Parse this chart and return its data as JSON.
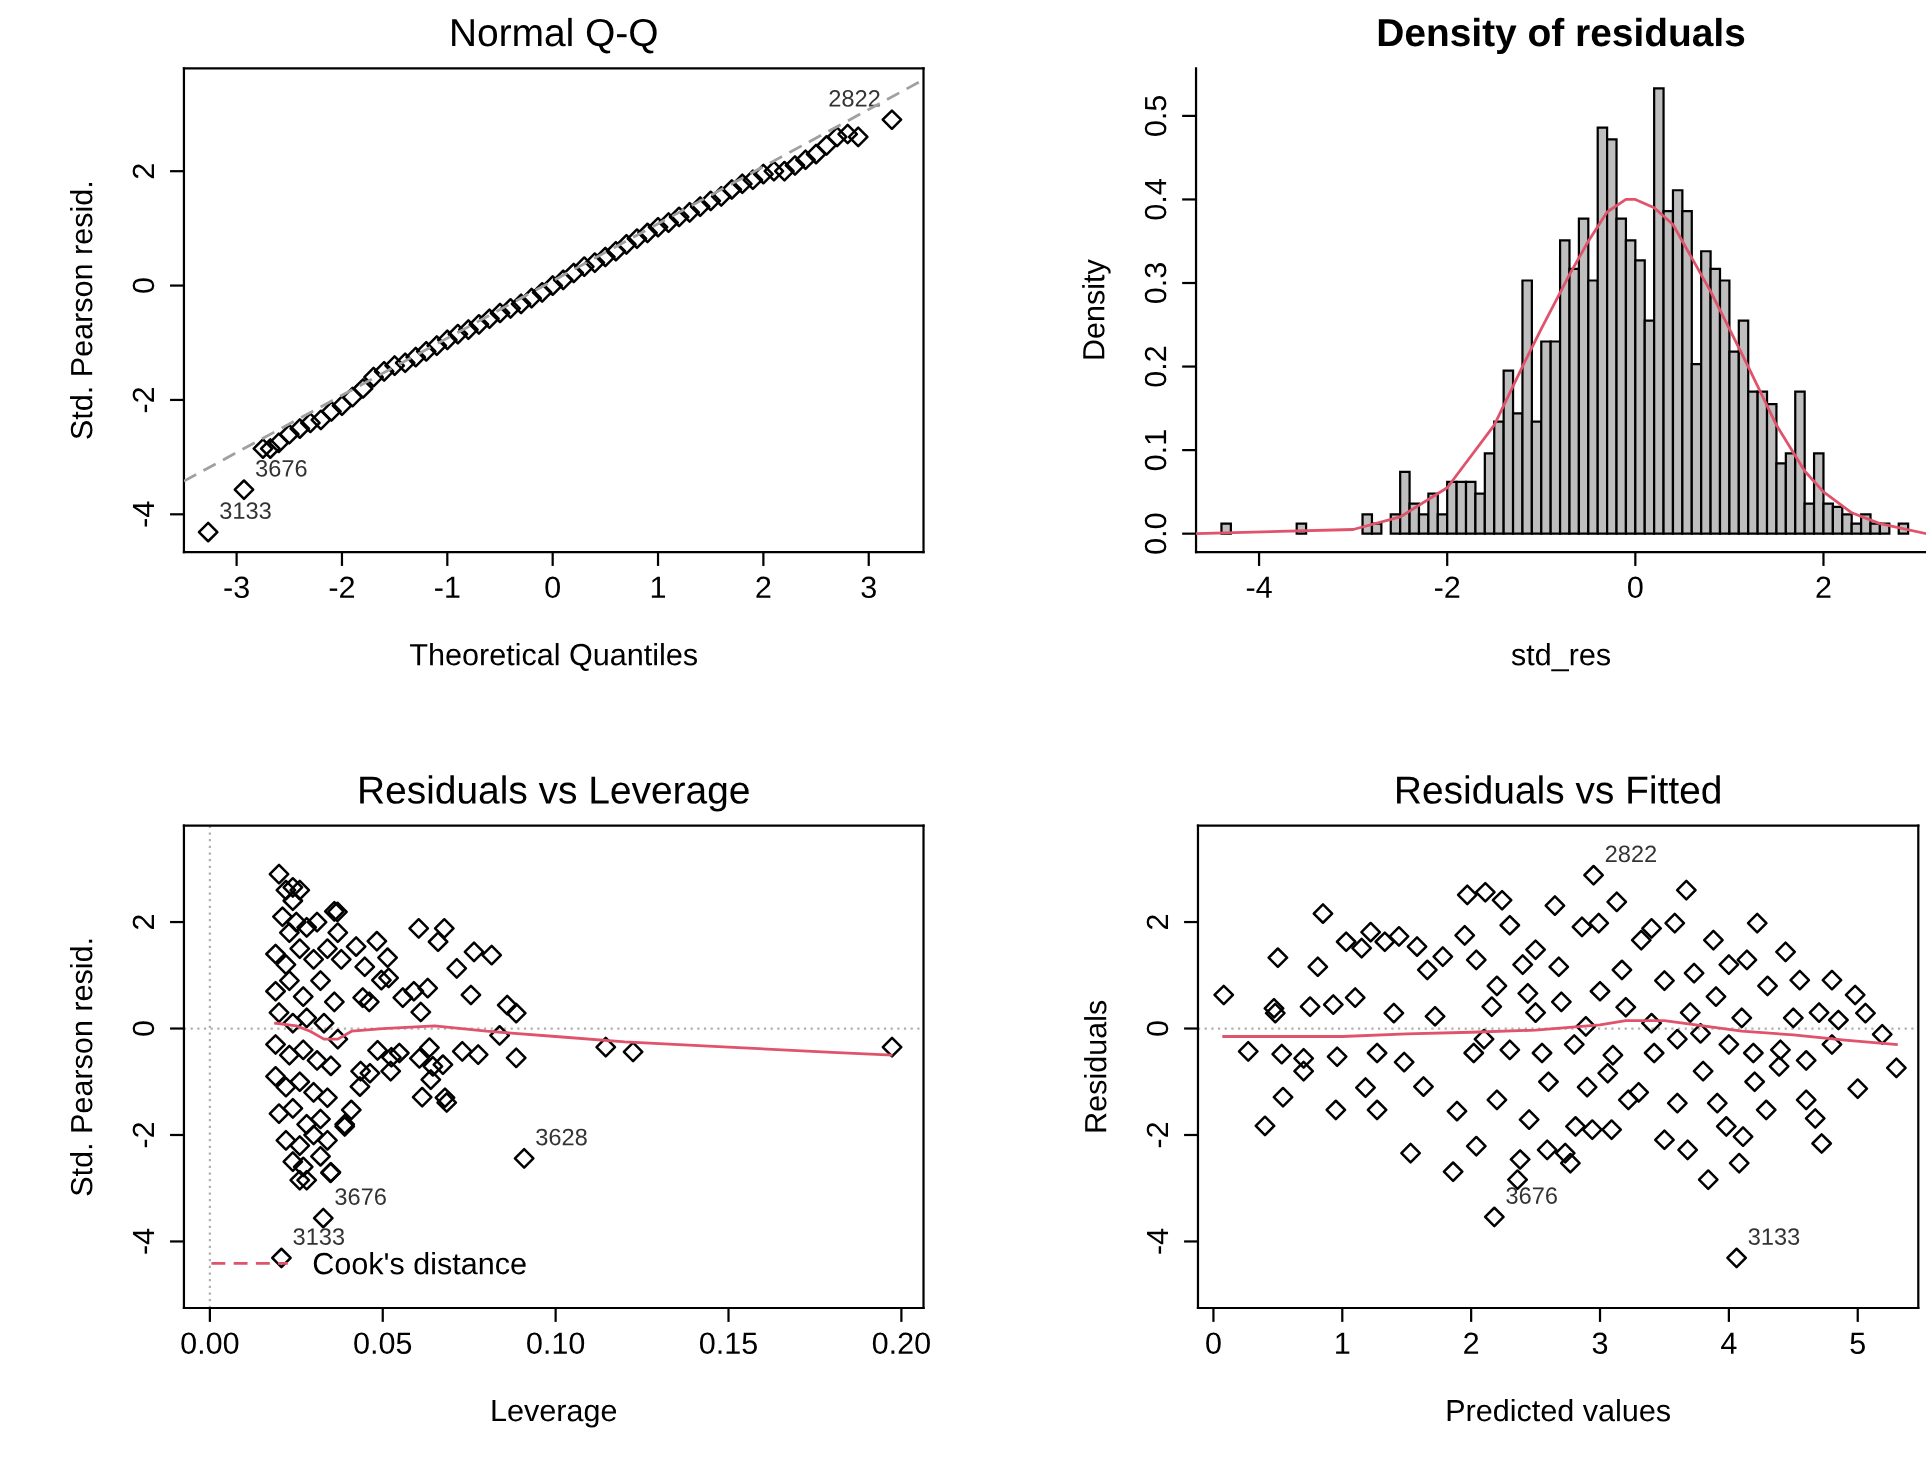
{
  "chart_data": [
    {
      "type": "scatter",
      "title": "Normal Q-Q",
      "xlabel": "Theoretical Quantiles",
      "ylabel": "Std. Pearson resid.",
      "xlim": [
        -3.5,
        3.52
      ],
      "ylim": [
        -4.66,
        3.8
      ],
      "xticks": [
        -3,
        -2,
        -1,
        0,
        1,
        2,
        3
      ],
      "yticks": [
        -4,
        -2,
        0,
        2
      ],
      "grid": false,
      "series": [
        {
          "type": "scatter",
          "marker": "diamond",
          "color": "#000000",
          "x": [
            -3.27,
            -2.93,
            -2.75,
            -2.68,
            -2.6,
            -2.5,
            -2.4,
            -2.3,
            -2.2,
            -2.1,
            -2.0,
            -1.9,
            -1.8,
            -1.7,
            -1.6,
            -1.5,
            -1.4,
            -1.3,
            -1.2,
            -1.1,
            -1.0,
            -0.9,
            -0.8,
            -0.7,
            -0.6,
            -0.5,
            -0.4,
            -0.3,
            -0.2,
            -0.1,
            0.0,
            0.1,
            0.2,
            0.3,
            0.4,
            0.5,
            0.6,
            0.7,
            0.8,
            0.9,
            1.0,
            1.1,
            1.2,
            1.3,
            1.4,
            1.5,
            1.6,
            1.7,
            1.8,
            1.9,
            2.0,
            2.1,
            2.2,
            2.3,
            2.4,
            2.5,
            2.6,
            2.7,
            2.8,
            2.9,
            3.22
          ],
          "values": [
            -4.31,
            -3.57,
            -2.85,
            -2.85,
            -2.75,
            -2.6,
            -2.5,
            -2.4,
            -2.35,
            -2.2,
            -2.1,
            -1.95,
            -1.8,
            -1.6,
            -1.5,
            -1.4,
            -1.35,
            -1.25,
            -1.15,
            -1.05,
            -0.95,
            -0.85,
            -0.77,
            -0.68,
            -0.58,
            -0.48,
            -0.4,
            -0.32,
            -0.22,
            -0.12,
            0.0,
            0.1,
            0.22,
            0.33,
            0.4,
            0.5,
            0.6,
            0.72,
            0.82,
            0.92,
            1.02,
            1.1,
            1.2,
            1.28,
            1.38,
            1.48,
            1.56,
            1.68,
            1.78,
            1.85,
            1.95,
            2.0,
            2.0,
            2.1,
            2.2,
            2.3,
            2.45,
            2.6,
            2.65,
            2.6,
            2.9
          ]
        },
        {
          "type": "line",
          "color": "#a0a0a0",
          "line_style": "dashed",
          "x": [
            -3.5,
            3.52
          ],
          "values": [
            -3.42,
            3.6
          ]
        }
      ],
      "annotations": [
        {
          "text": "2822",
          "x": 3.22,
          "y": 2.9
        },
        {
          "text": "3676",
          "x": -2.93,
          "y": -3.57
        },
        {
          "text": "3133",
          "x": -3.27,
          "y": -4.31
        }
      ]
    },
    {
      "type": "histogram",
      "title": "Density of residuals",
      "xlabel": "std_res",
      "ylabel": "Density",
      "xlim": [
        -4.67,
        3.09
      ],
      "ylim": [
        -0.022,
        0.557
      ],
      "xticks": [
        -4,
        -2,
        0,
        2
      ],
      "yticks": [
        {
          "value": 0,
          "label": "0.0"
        },
        0.1,
        0.2,
        0.3,
        0.4,
        0.5
      ],
      "color": "#bebebe",
      "grid": false,
      "bins": [
        -4.4,
        -4.3,
        -4.2,
        -4.1,
        -4.0,
        -3.9,
        -3.8,
        -3.7,
        -3.6,
        -3.5,
        -3.4,
        -3.3,
        -3.2,
        -3.1,
        -3.0,
        -2.9,
        -2.8,
        -2.7,
        -2.6,
        -2.5,
        -2.4,
        -2.3,
        -2.2,
        -2.1,
        -2.0,
        -1.9,
        -1.8,
        -1.7,
        -1.6,
        -1.5,
        -1.4,
        -1.3,
        -1.2,
        -1.1,
        -1.0,
        -0.9,
        -0.8,
        -0.7,
        -0.6,
        -0.5,
        -0.4,
        -0.3,
        -0.2,
        -0.1,
        0.0,
        0.1,
        0.2,
        0.3,
        0.4,
        0.5,
        0.6,
        0.7,
        0.8,
        0.9,
        1.0,
        1.1,
        1.2,
        1.3,
        1.4,
        1.5,
        1.6,
        1.7,
        1.8,
        1.9,
        2.0,
        2.1,
        2.2,
        2.3,
        2.4,
        2.5,
        2.6,
        2.7,
        2.8,
        2.9
      ],
      "values": [
        0.012,
        0,
        0,
        0,
        0,
        0,
        0,
        0,
        0.012,
        0,
        0,
        0,
        0,
        0,
        0,
        0.023,
        0.012,
        0,
        0.023,
        0.074,
        0.036,
        0.023,
        0.048,
        0.023,
        0.062,
        0.062,
        0.062,
        0.048,
        0.096,
        0.134,
        0.195,
        0.144,
        0.303,
        0.134,
        0.23,
        0.23,
        0.351,
        0.317,
        0.377,
        0.303,
        0.486,
        0.472,
        0.377,
        0.351,
        0.327,
        0.255,
        0.533,
        0.386,
        0.411,
        0.386,
        0.203,
        0.338,
        0.317,
        0.303,
        0.218,
        0.255,
        0.17,
        0.17,
        0.155,
        0.084,
        0.096,
        0.17,
        0.036,
        0.096,
        0.036,
        0.032,
        0.023,
        0.012,
        0.023,
        0.012,
        0.012,
        0,
        0.012
      ],
      "series": [
        {
          "type": "line",
          "color": "#df536b",
          "x": [
            -4.67,
            -3.0,
            -2.5,
            -2.0,
            -1.5,
            -1.2,
            -1.0,
            -0.7,
            -0.5,
            -0.3,
            -0.1,
            0.0,
            0.2,
            0.4,
            0.6,
            0.8,
            1.0,
            1.2,
            1.5,
            1.8,
            2.0,
            2.3,
            2.6,
            3.09
          ],
          "values": [
            0.0,
            0.005,
            0.02,
            0.055,
            0.13,
            0.2,
            0.245,
            0.31,
            0.35,
            0.385,
            0.4,
            0.4,
            0.39,
            0.37,
            0.33,
            0.29,
            0.245,
            0.2,
            0.13,
            0.075,
            0.05,
            0.025,
            0.012,
            0.0
          ]
        }
      ]
    },
    {
      "type": "scatter",
      "title": "Residuals vs Leverage",
      "xlabel": "Leverage",
      "ylabel": "Std. Pearson resid.",
      "xlim": [
        -0.0075,
        0.2064
      ],
      "ylim": [
        -5.25,
        3.81
      ],
      "xticks": [
        {
          "value": 0,
          "label": "0.00"
        },
        0.05,
        {
          "value": 0.1,
          "label": "0.10"
        },
        0.15,
        {
          "value": 0.2,
          "label": "0.20"
        }
      ],
      "yticks": [
        -4,
        -2,
        0,
        2
      ],
      "grid": false,
      "legend": "bottom left",
      "series": [
        {
          "type": "scatter",
          "marker": "diamond",
          "color": "#000000",
          "x": [
            0.02,
            0.022,
            0.024,
            0.026,
            0.024,
            0.021,
            0.023,
            0.025,
            0.028,
            0.031,
            0.036,
            0.037,
            0.019,
            0.022,
            0.026,
            0.03,
            0.034,
            0.038,
            0.019,
            0.023,
            0.027,
            0.032,
            0.036,
            0.02,
            0.024,
            0.028,
            0.033,
            0.037,
            0.019,
            0.023,
            0.027,
            0.031,
            0.035,
            0.019,
            0.022,
            0.026,
            0.03,
            0.034,
            0.02,
            0.024,
            0.028,
            0.032,
            0.039,
            0.022,
            0.026,
            0.03,
            0.034,
            0.024,
            0.027,
            0.032,
            0.035,
            0.026,
            0.028,
            0.0369,
            0.0423,
            0.0483,
            0.0514,
            0.0448,
            0.0604,
            0.066,
            0.0678,
            0.0714,
            0.0764,
            0.0815,
            0.0755,
            0.086,
            0.0886,
            0.0496,
            0.0517,
            0.0442,
            0.0461,
            0.0558,
            0.059,
            0.063,
            0.061,
            0.0838,
            0.1145,
            0.1224,
            0.1973,
            0.0886,
            0.073,
            0.0776,
            0.0525,
            0.0548,
            0.0485,
            0.0606,
            0.0635,
            0.0645,
            0.0674,
            0.0523,
            0.0436,
            0.0463,
            0.0434,
            0.0639,
            0.0614,
            0.068,
            0.0685,
            0.0409,
            0.039,
            0.0349,
            0.0909,
            0.0328,
            0.0207
          ],
          "values": [
            2.9,
            2.6,
            2.65,
            2.6,
            2.4,
            2.1,
            1.8,
            2.0,
            1.9,
            2.0,
            2.2,
            1.8,
            1.4,
            1.2,
            1.5,
            1.3,
            1.5,
            1.3,
            0.7,
            0.9,
            0.6,
            0.9,
            0.5,
            0.3,
            0.1,
            0.2,
            0.1,
            -0.2,
            -0.3,
            -0.5,
            -0.4,
            -0.6,
            -0.7,
            -0.9,
            -1.1,
            -1.0,
            -1.2,
            -1.3,
            -1.6,
            -1.5,
            -1.8,
            -1.7,
            -1.8,
            -2.1,
            -2.2,
            -2.0,
            -2.1,
            -2.5,
            -2.6,
            -2.4,
            -2.7,
            -2.85,
            -2.85,
            2.19,
            1.54,
            1.64,
            1.33,
            1.16,
            1.88,
            1.63,
            1.88,
            1.13,
            1.44,
            1.38,
            0.63,
            0.44,
            0.29,
            0.91,
            0.95,
            0.58,
            0.5,
            0.58,
            0.7,
            0.76,
            0.31,
            -0.13,
            -0.35,
            -0.44,
            -0.35,
            -0.55,
            -0.43,
            -0.49,
            -0.54,
            -0.46,
            -0.41,
            -0.56,
            -0.36,
            -0.71,
            -0.68,
            -0.8,
            -0.8,
            -0.84,
            -1.09,
            -0.96,
            -1.29,
            -1.3,
            -1.39,
            -1.53,
            -1.84,
            -2.71,
            -2.44,
            -3.56,
            -4.31
          ]
        },
        {
          "type": "line",
          "color": "#df536b",
          "x": [
            0.019,
            0.025,
            0.029,
            0.033,
            0.037,
            0.041,
            0.05,
            0.065,
            0.08,
            0.1,
            0.12,
            0.15,
            0.18,
            0.197
          ],
          "values": [
            0.1,
            0.05,
            -0.05,
            -0.2,
            -0.2,
            -0.05,
            0.0,
            0.05,
            -0.05,
            -0.15,
            -0.25,
            -0.35,
            -0.45,
            -0.5
          ]
        },
        {
          "type": "line",
          "name": "Cook's distance",
          "color": "#df536b",
          "line_style": "dashed"
        }
      ],
      "ref_lines": [
        {
          "axis": "y",
          "value": 0,
          "color": "#b0b0b0",
          "line_style": "dotted"
        },
        {
          "axis": "x",
          "value": 0,
          "color": "#b0b0b0",
          "line_style": "dotted"
        }
      ],
      "annotations": [
        {
          "text": "3628",
          "x": 0.0909,
          "y": -2.44
        },
        {
          "text": "3676",
          "x": 0.0328,
          "y": -3.56
        },
        {
          "text": "3133",
          "x": 0.0207,
          "y": -4.31
        }
      ]
    },
    {
      "type": "scatter",
      "title": "Residuals vs Fitted",
      "xlabel": "Predicted values",
      "ylabel": "Residuals",
      "xlim": [
        -0.12,
        5.47
      ],
      "ylim": [
        -5.25,
        3.81
      ],
      "xticks": [
        0,
        1,
        2,
        3,
        4,
        5
      ],
      "yticks": [
        -4,
        -2,
        0,
        2
      ],
      "grid": false,
      "series": [
        {
          "type": "scatter",
          "marker": "diamond",
          "color": "#000000",
          "x": [
            0.08,
            0.27,
            0.4,
            0.5,
            0.47,
            0.48,
            0.53,
            0.54,
            0.7,
            0.7,
            0.75,
            0.81,
            0.85,
            0.93,
            0.95,
            0.96,
            1.03,
            1.1,
            1.15,
            1.22,
            1.18,
            1.27,
            1.27,
            1.33,
            1.44,
            1.4,
            1.48,
            1.53,
            1.58,
            1.63,
            1.66,
            1.72,
            1.78,
            1.86,
            1.89,
            1.95,
            1.97,
            2.04,
            2.02,
            2.11,
            2.04,
            2.16,
            2.18,
            2.2,
            2.24,
            2.3,
            2.36,
            2.38,
            2.44,
            2.45,
            2.5,
            2.55,
            2.59,
            2.65,
            2.68,
            2.73,
            2.77,
            2.81,
            2.86,
            2.89,
            2.94,
            2.95,
            2.99,
            3.06,
            3.09,
            3.13,
            3.17,
            3.22,
            3.32,
            3.4,
            3.42,
            3.5,
            3.58,
            3.67,
            3.68,
            3.73,
            3.78,
            3.84,
            3.88,
            3.91,
            3.98,
            4.06,
            4.08,
            4.11,
            4.14,
            4.22,
            4.19,
            4.29,
            4.44,
            4.39,
            4.55,
            4.6,
            4.67,
            4.72,
            4.8,
            4.85,
            4.98,
            5.0,
            5.06,
            5.19,
            5.3,
            2.2,
            2.3,
            2.5,
            2.6,
            2.7,
            2.8,
            3.0,
            3.1,
            3.2,
            3.3,
            3.5,
            3.6,
            3.7,
            3.8,
            3.9,
            4.0,
            4.1,
            4.2,
            4.3,
            4.4,
            4.5,
            4.6,
            4.7,
            4.8,
            2.1,
            2.4,
            2.9,
            3.4,
            4.0,
            3.6
          ],
          "values": [
            0.63,
            -0.43,
            -1.83,
            1.33,
            0.38,
            0.29,
            -0.48,
            -1.29,
            -0.56,
            -0.8,
            0.41,
            1.16,
            2.16,
            0.45,
            -1.53,
            -0.53,
            1.63,
            0.58,
            1.51,
            1.81,
            -1.11,
            -0.46,
            -1.53,
            1.63,
            1.73,
            0.29,
            -0.63,
            -2.34,
            1.54,
            -1.09,
            1.1,
            0.23,
            1.35,
            -2.69,
            -1.55,
            1.75,
            2.51,
            1.29,
            -0.46,
            2.56,
            -2.21,
            0.41,
            -3.54,
            -1.34,
            2.41,
            1.94,
            -2.84,
            -2.46,
            0.66,
            -1.71,
            1.48,
            -0.46,
            -2.28,
            2.31,
            1.16,
            -2.34,
            -2.53,
            -1.84,
            1.91,
            0.04,
            -1.9,
            2.88,
            1.98,
            -0.84,
            -1.9,
            2.38,
            1.1,
            -1.34,
            1.66,
            1.88,
            -0.46,
            -2.09,
            1.98,
            2.6,
            -2.28,
            1.04,
            -0.09,
            -2.84,
            1.66,
            -1.4,
            -1.84,
            -4.31,
            -2.53,
            -2.03,
            1.29,
            1.98,
            -0.46,
            -1.53,
            1.44,
            -0.71,
            0.91,
            -1.34,
            -1.69,
            -2.16,
            0.91,
            0.16,
            0.63,
            -1.13,
            0.29,
            -0.11,
            -0.74,
            0.8,
            -0.4,
            0.3,
            -1.0,
            0.5,
            -0.3,
            0.7,
            -0.5,
            0.4,
            -1.2,
            0.9,
            -0.2,
            0.3,
            -0.8,
            0.6,
            -0.3,
            0.2,
            -1.0,
            0.8,
            -0.4,
            0.2,
            -0.6,
            0.3,
            -0.3,
            -0.2,
            1.2,
            -1.1,
            0.1,
            1.2,
            -1.4
          ]
        },
        {
          "type": "line",
          "color": "#df536b",
          "x": [
            0.08,
            0.5,
            1.0,
            1.5,
            2.0,
            2.5,
            3.0,
            3.2,
            3.5,
            3.8,
            4.1,
            4.5,
            4.9,
            5.3
          ],
          "values": [
            -0.15,
            -0.15,
            -0.15,
            -0.1,
            -0.07,
            -0.03,
            0.07,
            0.15,
            0.15,
            0.05,
            -0.05,
            -0.12,
            -0.22,
            -0.3
          ]
        }
      ],
      "ref_lines": [
        {
          "axis": "y",
          "value": 0,
          "color": "#b0b0b0",
          "line_style": "dotted"
        }
      ],
      "annotations": [
        {
          "text": "2822",
          "x": 2.95,
          "y": 2.88
        },
        {
          "text": "3676",
          "x": 2.18,
          "y": -3.54
        },
        {
          "text": "3133",
          "x": 4.06,
          "y": -4.31
        }
      ]
    }
  ]
}
